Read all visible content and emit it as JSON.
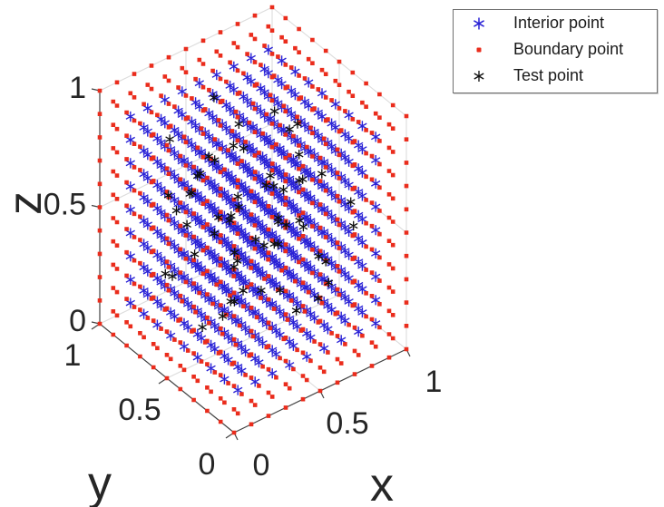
{
  "chart_data": {
    "type": "scatter",
    "subtype": "scatter3d",
    "title": "",
    "xlabel": "x",
    "ylabel": "y",
    "zlabel": "z",
    "xlim": [
      0,
      1
    ],
    "ylim": [
      0,
      1
    ],
    "zlim": [
      0,
      1
    ],
    "ticks": [
      0,
      0.5,
      1
    ],
    "tick_labels": [
      "0",
      "0.5",
      "1"
    ],
    "grid": true,
    "view": {
      "azimuth": -37.5,
      "elevation": 30
    },
    "point_grid": {
      "start": 0,
      "stop": 1,
      "step": 0.1,
      "points_per_axis": 11
    },
    "series": [
      {
        "name": "Interior point",
        "marker": "asterisk",
        "color": "#2a22d6",
        "definition": "grid points with every coordinate strictly between 0 and 1",
        "count": 729
      },
      {
        "name": "Boundary point",
        "marker": "dot",
        "color": "#ea2c1c",
        "definition": "grid points with at least one coordinate equal to 0 or 1",
        "count": 602
      },
      {
        "name": "Test point",
        "marker": "asterisk",
        "color": "#0f0f0f",
        "count": 60,
        "points": [
          [
            0.13,
            0.42,
            0.87
          ],
          [
            0.52,
            0.18,
            0.64
          ],
          [
            0.77,
            0.66,
            0.32
          ],
          [
            0.25,
            0.81,
            0.55
          ],
          [
            0.61,
            0.37,
            0.91
          ],
          [
            0.44,
            0.59,
            0.13
          ],
          [
            0.88,
            0.24,
            0.46
          ],
          [
            0.17,
            0.73,
            0.28
          ],
          [
            0.35,
            0.12,
            0.74
          ],
          [
            0.69,
            0.85,
            0.68
          ],
          [
            0.54,
            0.47,
            0.39
          ],
          [
            0.29,
            0.56,
            0.82
          ],
          [
            0.73,
            0.31,
            0.17
          ],
          [
            0.46,
            0.92,
            0.43
          ],
          [
            0.82,
            0.58,
            0.76
          ],
          [
            0.21,
            0.27,
            0.51
          ],
          [
            0.58,
            0.74,
            0.22
          ],
          [
            0.37,
            0.44,
            0.63
          ],
          [
            0.65,
            0.13,
            0.35
          ],
          [
            0.11,
            0.62,
            0.93
          ],
          [
            0.49,
            0.33,
            0.48
          ],
          [
            0.76,
            0.49,
            0.58
          ],
          [
            0.32,
            0.87,
            0.15
          ],
          [
            0.57,
            0.22,
            0.78
          ],
          [
            0.84,
            0.71,
            0.41
          ],
          [
            0.23,
            0.38,
            0.24
          ],
          [
            0.41,
            0.67,
            0.71
          ],
          [
            0.68,
            0.53,
            0.12
          ],
          [
            0.15,
            0.19,
            0.42
          ],
          [
            0.53,
            0.83,
            0.86
          ],
          [
            0.79,
            0.36,
            0.66
          ],
          [
            0.27,
            0.64,
            0.37
          ],
          [
            0.62,
            0.28,
            0.53
          ],
          [
            0.38,
            0.76,
            0.61
          ],
          [
            0.71,
            0.61,
            0.84
          ],
          [
            0.19,
            0.48,
            0.16
          ],
          [
            0.47,
            0.14,
            0.29
          ],
          [
            0.86,
            0.42,
            0.23
          ],
          [
            0.33,
            0.57,
            0.47
          ],
          [
            0.59,
            0.79,
            0.33
          ],
          [
            0.24,
            0.33,
            0.69
          ],
          [
            0.66,
            0.46,
            0.44
          ],
          [
            0.42,
            0.21,
            0.56
          ],
          [
            0.74,
            0.68,
            0.52
          ],
          [
            0.16,
            0.52,
            0.73
          ],
          [
            0.51,
            0.63,
            0.26
          ],
          [
            0.81,
            0.17,
            0.62
          ],
          [
            0.28,
            0.71,
            0.46
          ],
          [
            0.55,
            0.41,
            0.67
          ],
          [
            0.63,
            0.57,
            0.57
          ],
          [
            0.36,
            0.26,
            0.36
          ],
          [
            0.72,
            0.44,
            0.73
          ],
          [
            0.18,
            0.66,
            0.58
          ],
          [
            0.45,
            0.51,
            0.21
          ],
          [
            0.67,
            0.23,
            0.41
          ],
          [
            0.26,
            0.45,
            0.62
          ],
          [
            0.56,
            0.69,
            0.49
          ],
          [
            0.39,
            0.34,
            0.53
          ],
          [
            0.64,
            0.75,
            0.64
          ],
          [
            0.48,
            0.62,
            0.77
          ]
        ]
      }
    ],
    "legend": {
      "position": "northeast",
      "items": [
        "Interior point",
        "Boundary point",
        "Test point"
      ]
    }
  },
  "colors": {
    "background": "#ffffff",
    "axis_ruler": "#424242",
    "grid_line": "#dcdcdc",
    "tick_label": "#262626",
    "interior": "#2a22d6",
    "boundary": "#ea2c1c",
    "test": "#0f0f0f"
  }
}
